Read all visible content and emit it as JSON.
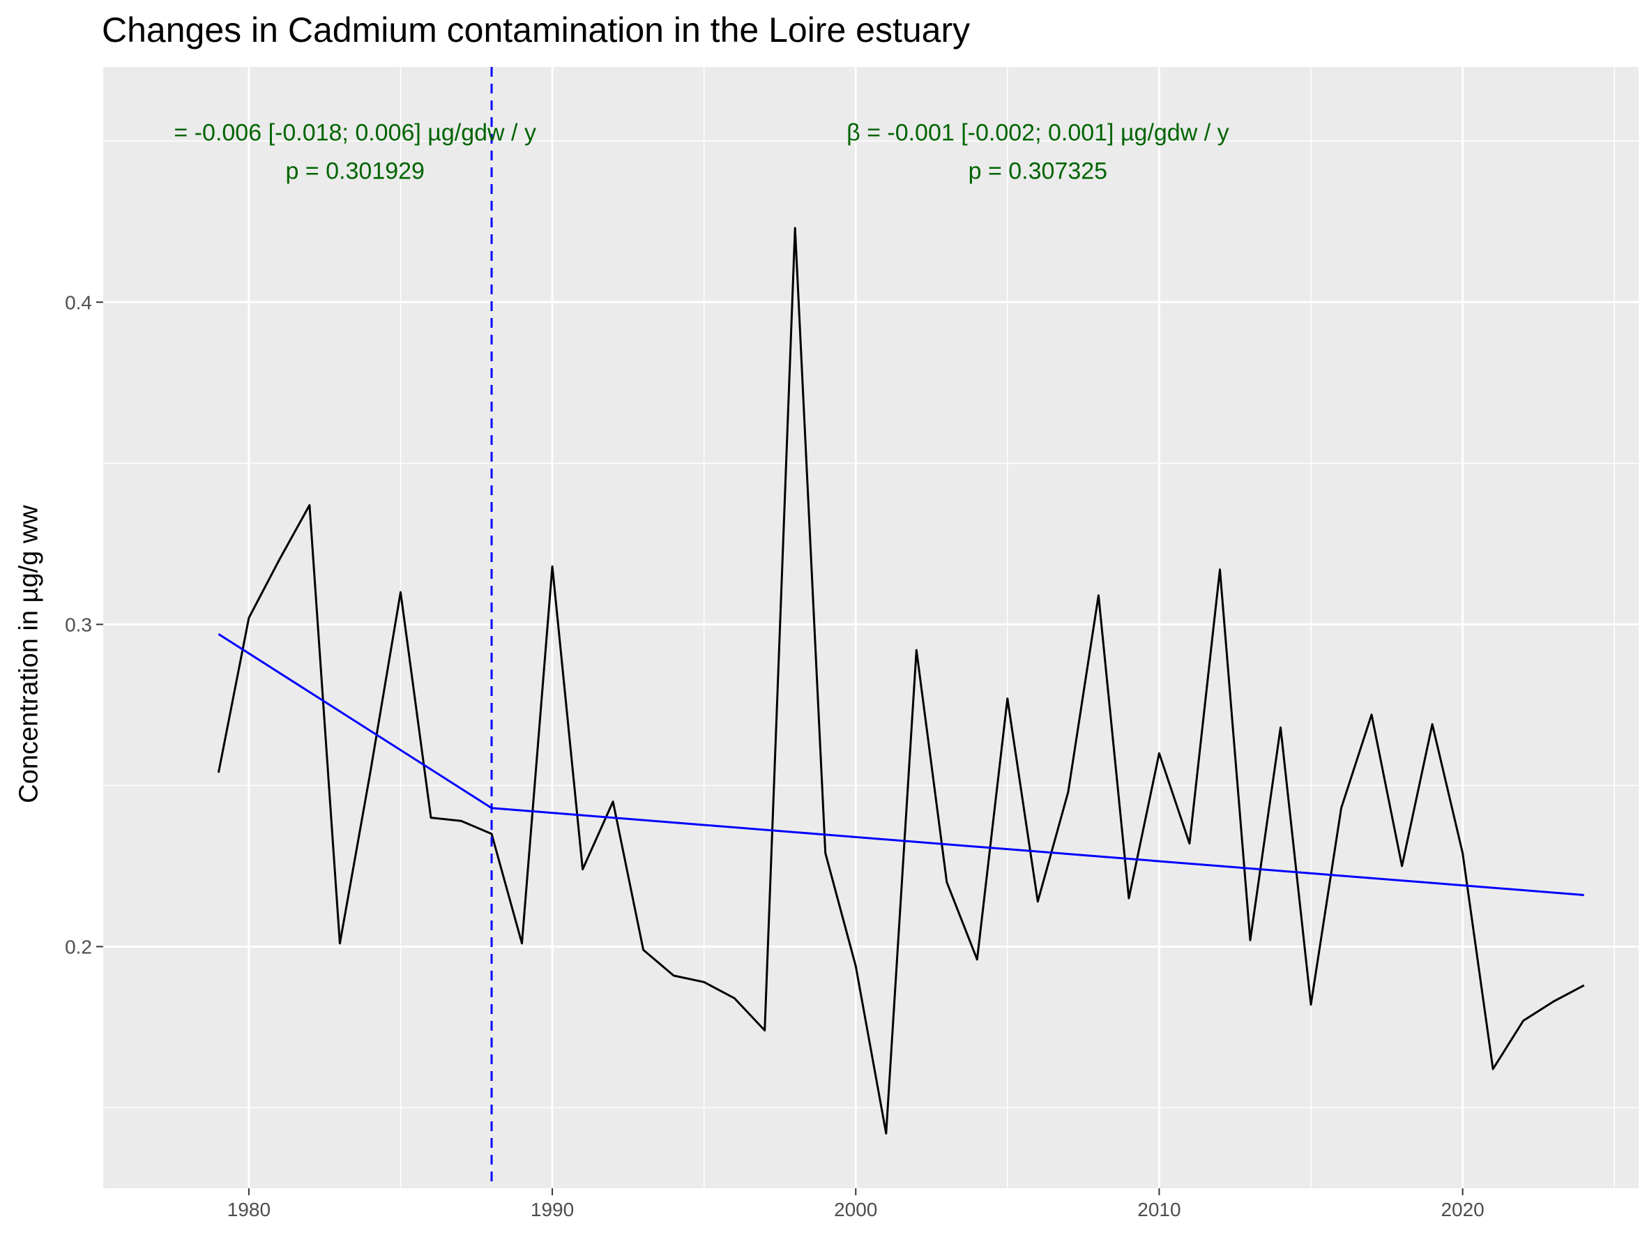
{
  "title": "Changes in Cadmium contamination in the Loire estuary",
  "colors": {
    "panel_bg": "#EBEBEB",
    "grid": "#FFFFFF",
    "data_line": "#000000",
    "trend_line": "#0000FF",
    "annotation": "#006400",
    "breakpoint": "#0000FF"
  },
  "chart_data": {
    "type": "line",
    "title": "Changes in Cadmium contamination in the Loire estuary",
    "xlabel": "",
    "ylabel": "Concentration in µg/g ww",
    "xlim": [
      1975.2,
      2025.8
    ],
    "ylim": [
      0.125,
      0.473
    ],
    "x_ticks": [
      1980,
      1990,
      2000,
      2010,
      2020
    ],
    "x_tick_labels": [
      "1980",
      "1990",
      "2000",
      "2010",
      "2020"
    ],
    "y_ticks": [
      0.2,
      0.3,
      0.4
    ],
    "y_tick_labels": [
      "0.2",
      "0.3",
      "0.4"
    ],
    "grid": true,
    "legend": "none",
    "series": [
      {
        "x": [
          1979,
          1980,
          1981,
          1982,
          1983,
          1984,
          1985,
          1986,
          1987,
          1988,
          1989,
          1990,
          1991,
          1992,
          1993,
          1994,
          1995,
          1996,
          1997,
          1998,
          1999,
          2000,
          2001,
          2002,
          2003,
          2004,
          2005,
          2006,
          2007,
          2008,
          2009,
          2010,
          2011,
          2012,
          2013,
          2014,
          2015,
          2016,
          2017,
          2018,
          2019,
          2020,
          2021,
          2022,
          2023,
          2024
        ],
        "y": [
          0.254,
          0.302,
          0.32,
          0.337,
          0.201,
          0.254,
          0.31,
          0.24,
          0.239,
          0.235,
          0.201,
          0.318,
          0.224,
          0.245,
          0.199,
          0.191,
          0.189,
          0.184,
          0.174,
          0.423,
          0.229,
          0.194,
          0.142,
          0.292,
          0.22,
          0.196,
          0.277,
          0.214,
          0.248,
          0.309,
          0.215,
          0.26,
          0.232,
          0.317,
          0.202,
          0.268,
          0.182,
          0.243,
          0.272,
          0.225,
          0.269,
          0.229,
          0.162,
          0.177,
          0.183,
          0.188
        ]
      }
    ],
    "trend_segments": [
      {
        "x": [
          1979,
          1988
        ],
        "y": [
          0.297,
          0.243
        ]
      },
      {
        "x": [
          1988,
          2024
        ],
        "y": [
          0.243,
          0.216
        ]
      }
    ],
    "breakpoint_x": 1988,
    "annotations": [
      {
        "line1": "= -0.006 [-0.018; 0.006] µg/gdw / y",
        "line2": "p = 0.301929",
        "x": 1983.5,
        "y": 0.448
      },
      {
        "line1": "β = -0.001 [-0.002; 0.001] µg/gdw / y",
        "line2": "p = 0.307325",
        "x": 2006,
        "y": 0.448
      }
    ]
  }
}
